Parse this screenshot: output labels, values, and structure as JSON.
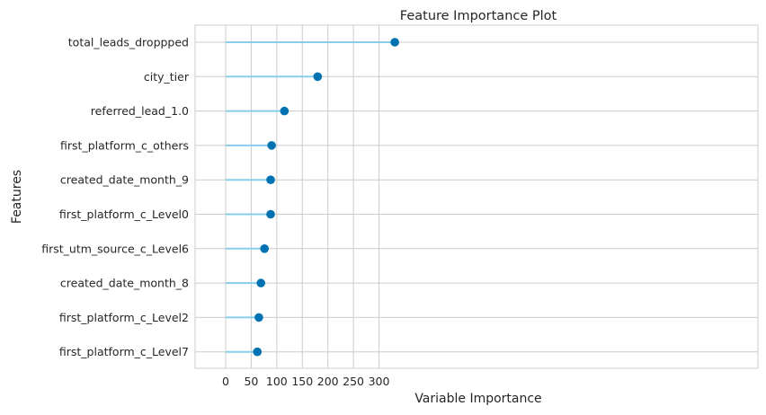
{
  "chart_data": {
    "type": "lollipop",
    "title": "Feature Importance Plot",
    "xlabel": "Variable Importance",
    "ylabel": "Features",
    "xlim": [
      -20,
      345
    ],
    "xticks": [
      0,
      50,
      100,
      150,
      200,
      250,
      300
    ],
    "grid": true,
    "categories": [
      "total_leads_droppped",
      "city_tier",
      "referred_lead_1.0",
      "first_platform_c_others",
      "created_date_month_9",
      "first_platform_c_Level0",
      "first_utm_source_c_Level6",
      "created_date_month_8",
      "first_platform_c_Level2",
      "first_platform_c_Level7"
    ],
    "values": [
      331,
      180,
      115,
      90,
      88,
      88,
      76,
      69,
      65,
      62
    ],
    "colors": {
      "stem": "#87ceeb",
      "marker": "#0072b2",
      "grid": "#cccccc",
      "frame": "#cccccc",
      "text": "#262626"
    }
  }
}
